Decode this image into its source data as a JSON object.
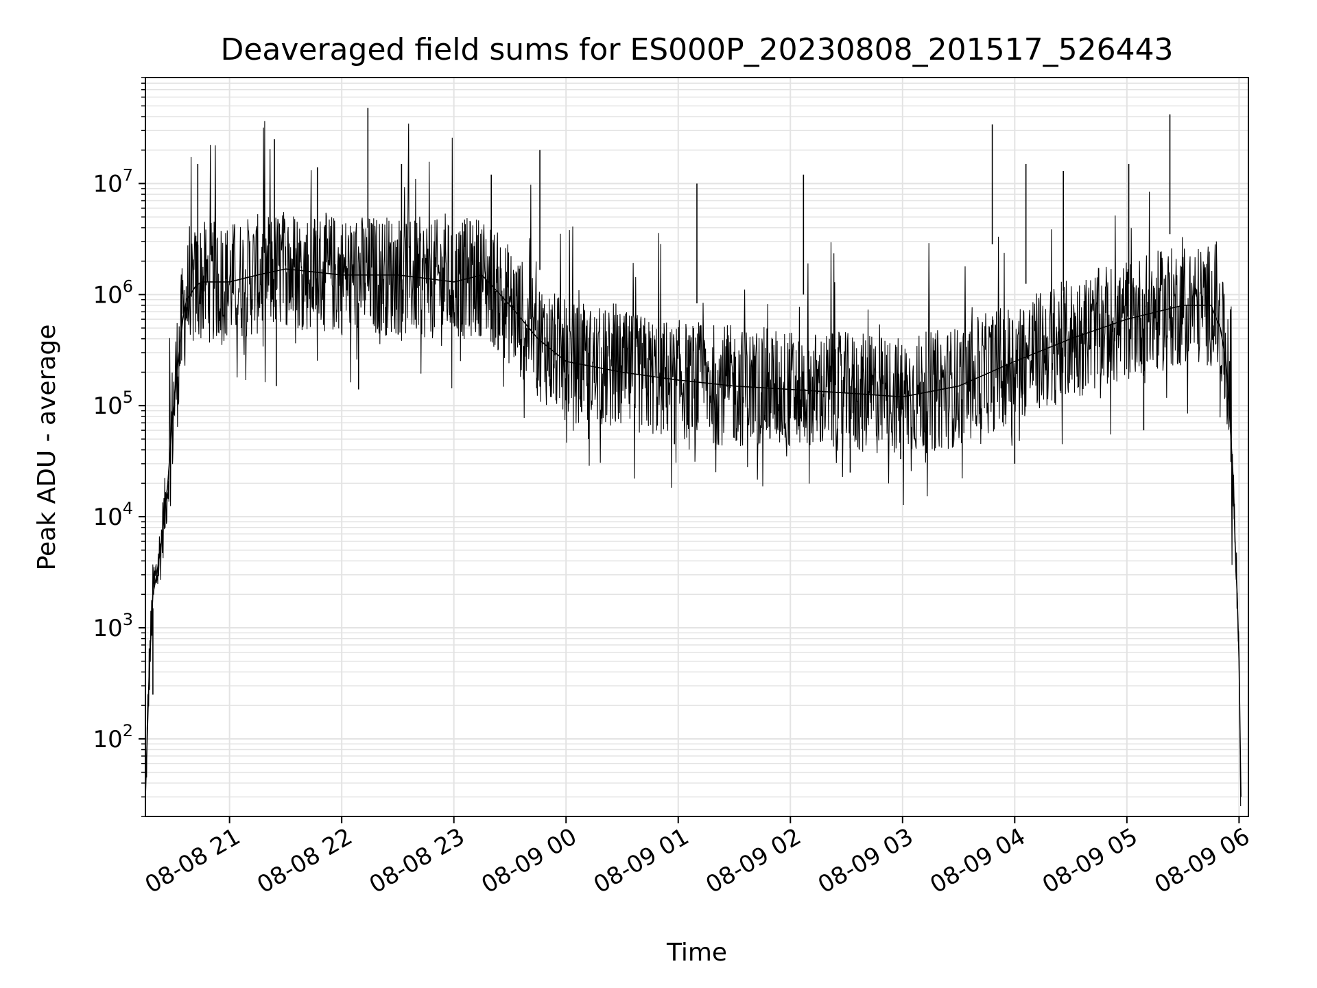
{
  "chart_data": {
    "type": "line",
    "title": "Deaveraged field sums for ES000P_20230808_201517_526443",
    "xlabel": "Time",
    "ylabel": "Peak ADU - average",
    "yscale": "log",
    "grid": true,
    "x_tick_labels": [
      "08-08 21",
      "08-08 22",
      "08-08 23",
      "08-09 00",
      "08-09 01",
      "08-09 02",
      "08-09 03",
      "08-09 04",
      "08-09 05",
      "08-09 06"
    ],
    "y_tick_labels": [
      {
        "base": "10",
        "exp": "2"
      },
      {
        "base": "10",
        "exp": "3"
      },
      {
        "base": "10",
        "exp": "4"
      },
      {
        "base": "10",
        "exp": "5"
      },
      {
        "base": "10",
        "exp": "6"
      },
      {
        "base": "10",
        "exp": "7"
      }
    ],
    "xlim": [
      "2023-08-08 20:15",
      "2023-08-09 06:05"
    ],
    "ylim": [
      20,
      90000000
    ],
    "series": [
      {
        "color": "#000000",
        "x": [
          "2023-08-08 20:15",
          "2023-08-08 20:17",
          "2023-08-08 20:19",
          "2023-08-08 20:21",
          "2023-08-08 20:23",
          "2023-08-08 20:25",
          "2023-08-08 20:27",
          "2023-08-08 20:29",
          "2023-08-08 20:31",
          "2023-08-08 20:33",
          "2023-08-08 20:35",
          "2023-08-08 20:37",
          "2023-08-08 20:39",
          "2023-08-08 20:42",
          "2023-08-08 20:45",
          "2023-08-08 20:50",
          "2023-08-08 21:00",
          "2023-08-08 21:15",
          "2023-08-08 21:30",
          "2023-08-08 21:45",
          "2023-08-08 22:00",
          "2023-08-08 22:15",
          "2023-08-08 22:30",
          "2023-08-08 22:45",
          "2023-08-08 23:00",
          "2023-08-08 23:15",
          "2023-08-08 23:30",
          "2023-08-08 23:45",
          "2023-08-09 00:00",
          "2023-08-09 00:30",
          "2023-08-09 01:00",
          "2023-08-09 01:30",
          "2023-08-09 02:00",
          "2023-08-09 02:30",
          "2023-08-09 03:00",
          "2023-08-09 03:30",
          "2023-08-09 04:00",
          "2023-08-09 04:30",
          "2023-08-09 05:00",
          "2023-08-09 05:30",
          "2023-08-09 05:45",
          "2023-08-09 05:50",
          "2023-08-09 05:53",
          "2023-08-09 05:55",
          "2023-08-09 05:57",
          "2023-08-09 05:58",
          "2023-08-09 05:59",
          "2023-08-09 06:00",
          "2023-08-09 06:01"
        ],
        "y": [
          30,
          400,
          2000,
          3000,
          5000,
          10000,
          20000,
          60000,
          150000,
          300000,
          600000,
          900000,
          1000000,
          1200000,
          1300000,
          1300000,
          1300000,
          1500000,
          1700000,
          1600000,
          1500000,
          1500000,
          1500000,
          1400000,
          1300000,
          1500000,
          800000,
          400000,
          250000,
          200000,
          170000,
          150000,
          140000,
          130000,
          120000,
          150000,
          250000,
          400000,
          600000,
          800000,
          800000,
          500000,
          250000,
          80000,
          20000,
          5000,
          2000,
          500,
          30
        ]
      }
    ],
    "spikes": [
      {
        "x": "2023-08-08 20:43",
        "y": 15000000
      },
      {
        "x": "2023-08-08 21:24",
        "y": 25000000
      },
      {
        "x": "2023-08-08 21:47",
        "y": 14000000
      },
      {
        "x": "2023-08-08 22:14",
        "y": 48000000
      },
      {
        "x": "2023-08-08 22:32",
        "y": 15000000
      },
      {
        "x": "2023-08-08 23:20",
        "y": 12000000
      },
      {
        "x": "2023-08-08 23:46",
        "y": 20000000
      },
      {
        "x": "2023-08-09 01:10",
        "y": 10000000
      },
      {
        "x": "2023-08-09 02:07",
        "y": 12000000
      },
      {
        "x": "2023-08-09 03:48",
        "y": 34000000
      },
      {
        "x": "2023-08-09 04:06",
        "y": 15000000
      },
      {
        "x": "2023-08-09 04:26",
        "y": 13000000
      },
      {
        "x": "2023-08-09 05:01",
        "y": 15000000
      },
      {
        "x": "2023-08-09 05:23",
        "y": 42000000
      }
    ],
    "dips": [
      {
        "x": "2023-08-08 20:19",
        "y": 250
      },
      {
        "x": "2023-08-08 21:25",
        "y": 150000
      },
      {
        "x": "2023-08-08 22:09",
        "y": 140000
      },
      {
        "x": "2023-08-09 00:12",
        "y": 50000
      },
      {
        "x": "2023-08-09 00:58",
        "y": 45000
      },
      {
        "x": "2023-08-09 01:20",
        "y": 40000
      },
      {
        "x": "2023-08-09 02:32",
        "y": 25000
      },
      {
        "x": "2023-08-09 02:59",
        "y": 33000
      },
      {
        "x": "2023-08-09 04:00",
        "y": 30000
      },
      {
        "x": "2023-08-09 05:09",
        "y": 60000
      }
    ]
  }
}
